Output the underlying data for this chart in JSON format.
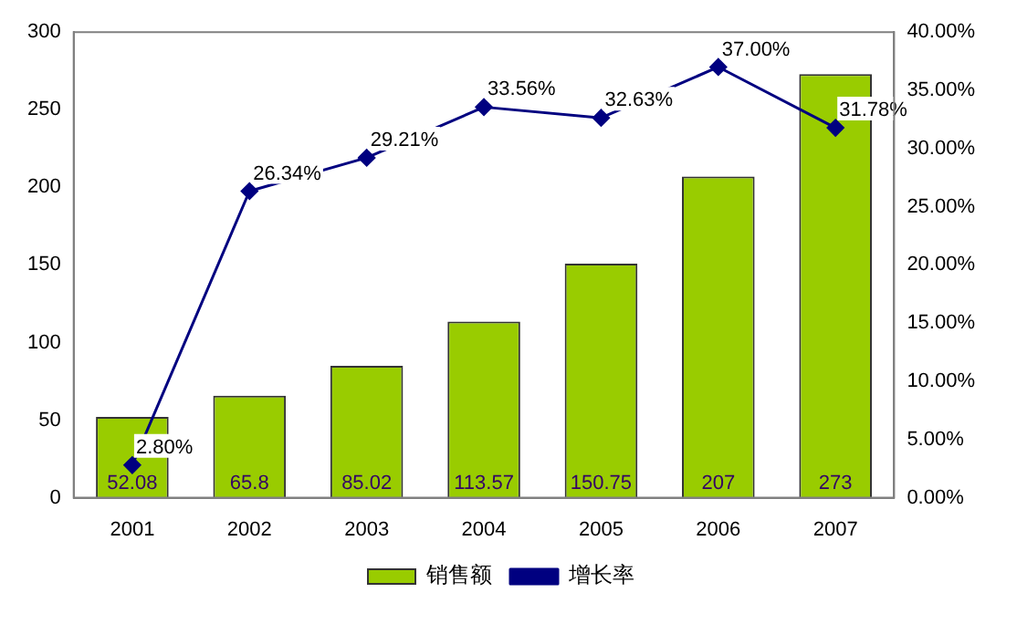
{
  "chart_data": {
    "type": "bar",
    "categories": [
      "2001",
      "2002",
      "2003",
      "2004",
      "2005",
      "2006",
      "2007"
    ],
    "series": [
      {
        "name": "销售额",
        "color": "#99cc00",
        "values": [
          52.08,
          65.8,
          85.02,
          113.57,
          150.75,
          207,
          273
        ],
        "value_labels": [
          "52.08",
          "65.8",
          "85.02",
          "113.57",
          "150.75",
          "207",
          "273"
        ]
      },
      {
        "name": "增长率",
        "type": "line",
        "axis": "y2",
        "color": "#000080",
        "marker": "diamond",
        "values": [
          2.8,
          26.34,
          29.21,
          33.56,
          32.63,
          37.0,
          31.78
        ],
        "value_labels": [
          "2.80%",
          "26.34%",
          "29.21%",
          "33.56%",
          "32.63%",
          "37.00%",
          "31.78%"
        ]
      }
    ],
    "ylim": [
      0,
      300
    ],
    "yticks": [
      0,
      50,
      100,
      150,
      200,
      250,
      300
    ],
    "y2lim": [
      0,
      40
    ],
    "y2ticks": [
      {
        "value": 0,
        "label": "0.00%"
      },
      {
        "value": 5,
        "label": "5.00%"
      },
      {
        "value": 10,
        "label": "10.00%"
      },
      {
        "value": 15,
        "label": "15.00%"
      },
      {
        "value": 20,
        "label": "20.00%"
      },
      {
        "value": 25,
        "label": "25.00%"
      },
      {
        "value": 30,
        "label": "30.00%"
      },
      {
        "value": 35,
        "label": "35.00%"
      },
      {
        "value": 40,
        "label": "40.00%"
      }
    ],
    "legend": "bottom",
    "grid": false
  }
}
